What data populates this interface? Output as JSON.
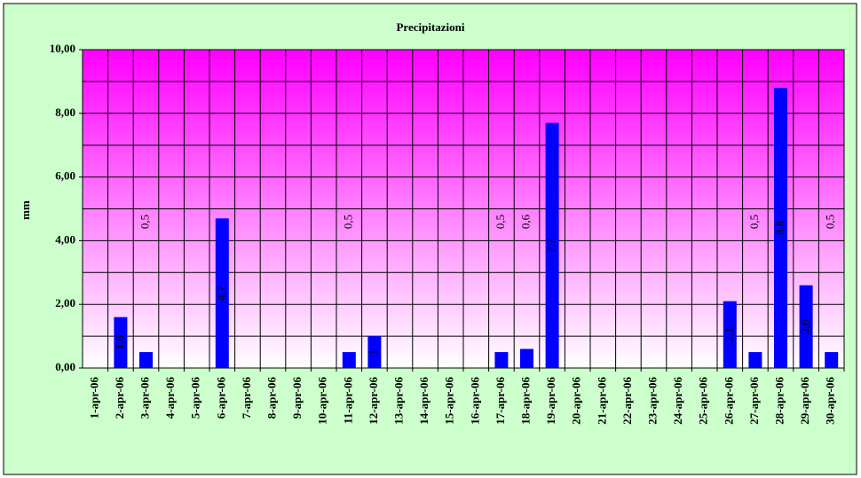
{
  "chart_data": {
    "type": "bar",
    "title": "Precipitazioni",
    "y_label": "mm",
    "categories": [
      "1-apr-06",
      "2-apr-06",
      "3-apr-06",
      "4-apr-06",
      "5-apr-06",
      "6-apr-06",
      "7-apr-06",
      "8-apr-06",
      "9-apr-06",
      "10-apr-06",
      "11-apr-06",
      "12-apr-06",
      "13-apr-06",
      "14-apr-06",
      "15-apr-06",
      "16-apr-06",
      "17-apr-06",
      "18-apr-06",
      "19-apr-06",
      "20-apr-06",
      "21-apr-06",
      "22-apr-06",
      "23-apr-06",
      "24-apr-06",
      "25-apr-06",
      "26-apr-06",
      "27-apr-06",
      "28-apr-06",
      "29-apr-06",
      "30-apr-06"
    ],
    "values": [
      null,
      1.6,
      0.5,
      null,
      null,
      4.7,
      null,
      null,
      null,
      null,
      0.5,
      1,
      null,
      null,
      null,
      null,
      0.5,
      0.6,
      7.7,
      null,
      null,
      null,
      null,
      null,
      null,
      2.1,
      0.5,
      8.8,
      2.6,
      0.5
    ],
    "value_labels": [
      null,
      "1,6",
      "0,5",
      null,
      null,
      "4,7",
      null,
      null,
      null,
      null,
      "0,5",
      "1",
      null,
      null,
      null,
      null,
      "0,5",
      "0,6",
      "7,7",
      null,
      null,
      null,
      null,
      null,
      null,
      "2,1",
      "0,5",
      "8,8",
      "2,6",
      "0,5"
    ],
    "color": "#0000ff",
    "ylim": [
      0,
      10
    ],
    "yticks": [
      {
        "value": 0,
        "label": "0,00"
      },
      {
        "value": 2,
        "label": "2,00"
      },
      {
        "value": 4,
        "label": "4,00"
      },
      {
        "value": 6,
        "label": "6,00"
      },
      {
        "value": 8,
        "label": "8,00"
      },
      {
        "value": 10,
        "label": "10,00"
      }
    ],
    "grid": true
  }
}
